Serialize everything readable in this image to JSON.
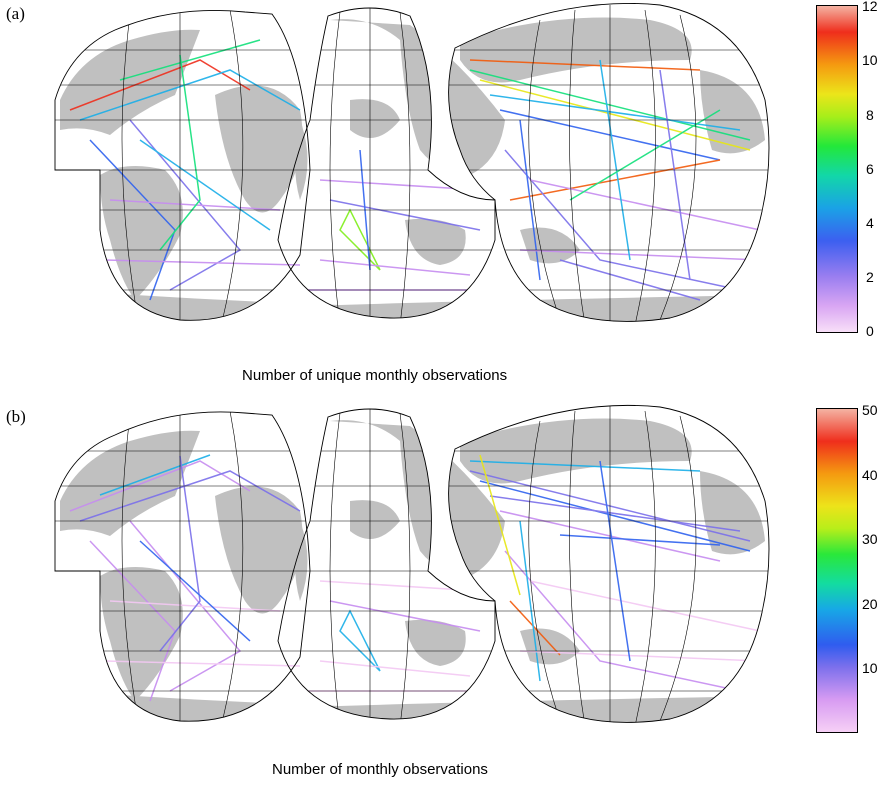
{
  "figure": {
    "panels": [
      {
        "label": "(a)",
        "caption": "Number of unique monthly observations",
        "colorbar": {
          "ticks": [
            "12",
            "10",
            "8",
            "6",
            "4",
            "2",
            "0"
          ],
          "min": 0,
          "max": 12
        }
      },
      {
        "label": "(b)",
        "caption": "Number of monthly observations",
        "colorbar": {
          "ticks": [
            "50",
            "40",
            "30",
            "20",
            "10"
          ],
          "min": 0,
          "max": 50
        }
      }
    ]
  },
  "colors": {
    "land": "#c0c0c0",
    "ocean": "#ffffff",
    "grid": "#000000",
    "colormap": [
      "#f3c8f3",
      "#c68cf0",
      "#7a6fea",
      "#2f62ef",
      "#1aaee8",
      "#11e07b",
      "#7fef1a",
      "#e7e713",
      "#f6a20e",
      "#f25a0b",
      "#ef2e1c",
      "#f2a593"
    ]
  }
}
